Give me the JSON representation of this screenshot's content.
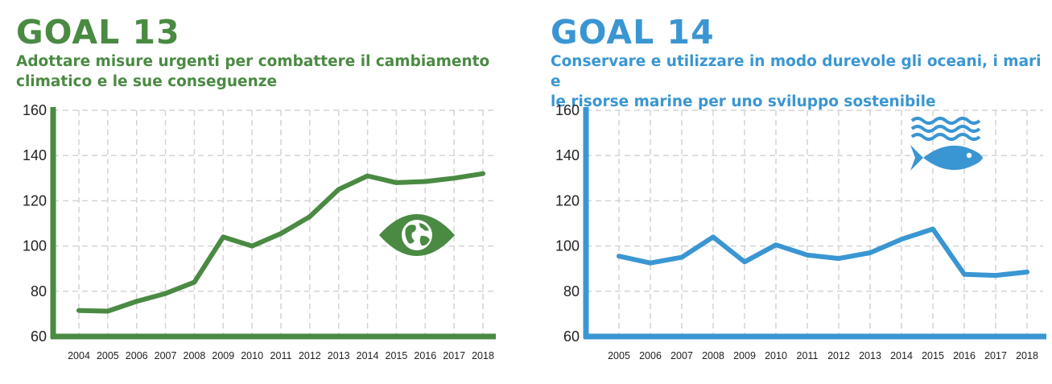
{
  "colors": {
    "goal13": "#4a8a43",
    "goal14": "#3a96d2",
    "grid": "#d4d4d4"
  },
  "goal13": {
    "title": "GOAL 13",
    "subtitle_line1": "Adottare misure urgenti per combattere il cambiamento",
    "subtitle_line2": "climatico e le sue conseguenze",
    "icon": "eye-globe-icon"
  },
  "goal14": {
    "title": "GOAL 14",
    "subtitle_line1": "Conservare e utilizzare in modo durevole gli oceani, i mari e",
    "subtitle_line2": "le risorse marine per uno sviluppo sostenibile",
    "icon": "fish-waves-icon"
  },
  "chart_data": [
    {
      "type": "line",
      "x": [
        "2004",
        "2005",
        "2006",
        "2007",
        "2008",
        "2009",
        "2010",
        "2011",
        "2012",
        "2013",
        "2014",
        "2015",
        "2016",
        "2017",
        "2018"
      ],
      "series": [
        {
          "values": [
            71.5,
            71.2,
            75.5,
            79,
            84,
            104,
            100,
            105.5,
            113,
            125,
            131,
            128,
            128.5,
            130,
            132
          ]
        }
      ],
      "yticks": [
        60,
        80,
        100,
        120,
        140,
        160
      ],
      "ylim": [
        60,
        160
      ],
      "grid": true
    },
    {
      "type": "line",
      "x": [
        "2005",
        "2006",
        "2007",
        "2008",
        "2009",
        "2010",
        "2011",
        "2012",
        "2013",
        "2014",
        "2015",
        "2016",
        "2017",
        "2018"
      ],
      "series": [
        {
          "values": [
            95.5,
            92.5,
            95,
            104,
            93,
            100.5,
            96,
            94.5,
            97,
            103,
            107.5,
            87.5,
            87,
            88.5
          ]
        }
      ],
      "yticks": [
        60,
        80,
        100,
        120,
        140,
        160
      ],
      "ylim": [
        60,
        160
      ],
      "grid": true
    }
  ]
}
